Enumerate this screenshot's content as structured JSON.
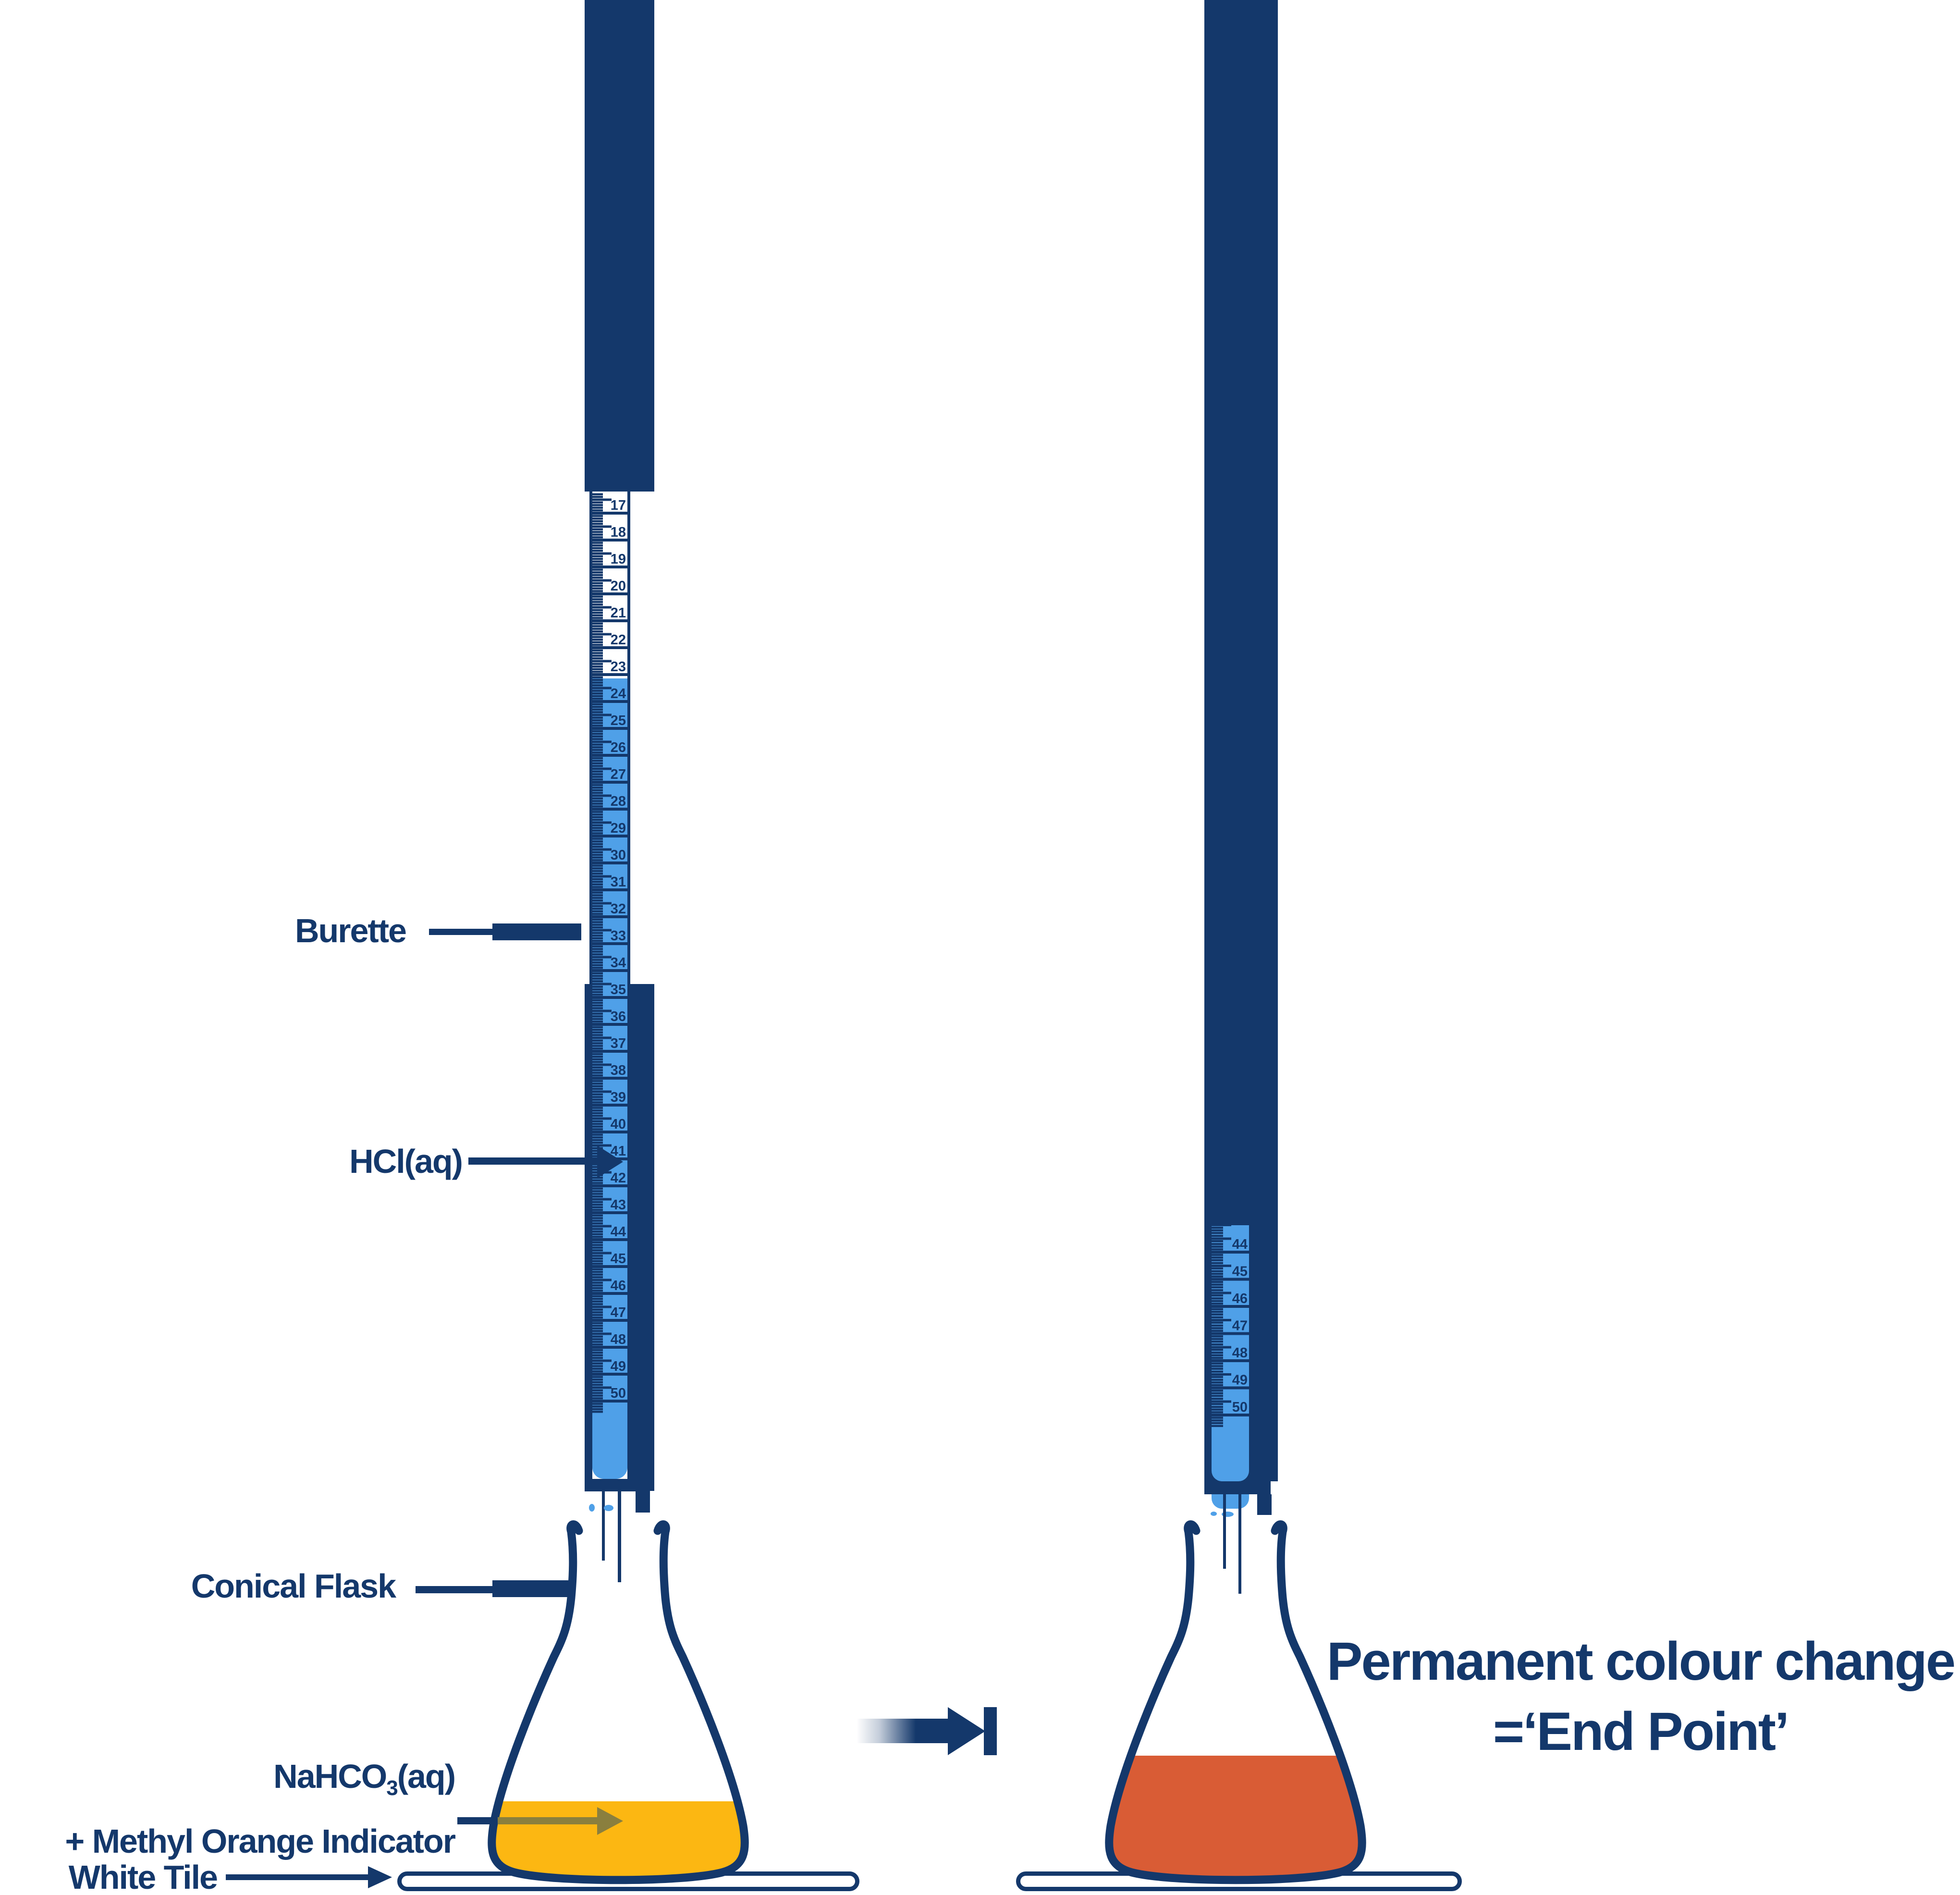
{
  "colors": {
    "navy": "#14386b",
    "light_blue": "#4fa0e8",
    "yellow": "#fcb712",
    "orange": "#d95c35",
    "olive_arrow": "#8a7f3e",
    "white": "#ffffff"
  },
  "left_apparatus": {
    "burette_label": "Burette",
    "burette_liquid_label": "HCl(aq)",
    "flask_label": "Conical Flask",
    "flask_contents_formula": "NaHCO",
    "flask_contents_formula_sub": "3",
    "flask_contents_formula_suffix": "(aq)",
    "flask_contents_line2": "+ Methyl Orange Indicator",
    "tile_label": "White Tile",
    "scale": {
      "numbers": [
        17,
        18,
        19,
        20,
        21,
        22,
        23,
        24,
        25,
        26,
        27,
        28,
        29,
        30,
        31,
        32,
        33,
        34,
        35,
        36,
        37,
        38,
        39,
        40,
        41,
        42,
        43,
        44,
        45,
        46,
        47,
        48,
        49,
        50
      ],
      "liquid_value": 23.2
    }
  },
  "right_apparatus": {
    "scale": {
      "numbers": [
        44,
        45,
        46,
        47,
        48,
        49,
        50
      ],
      "liquid_value": 43.0
    }
  },
  "result": {
    "line1": "Permanent colour change",
    "line2": "=‘End Point’"
  }
}
